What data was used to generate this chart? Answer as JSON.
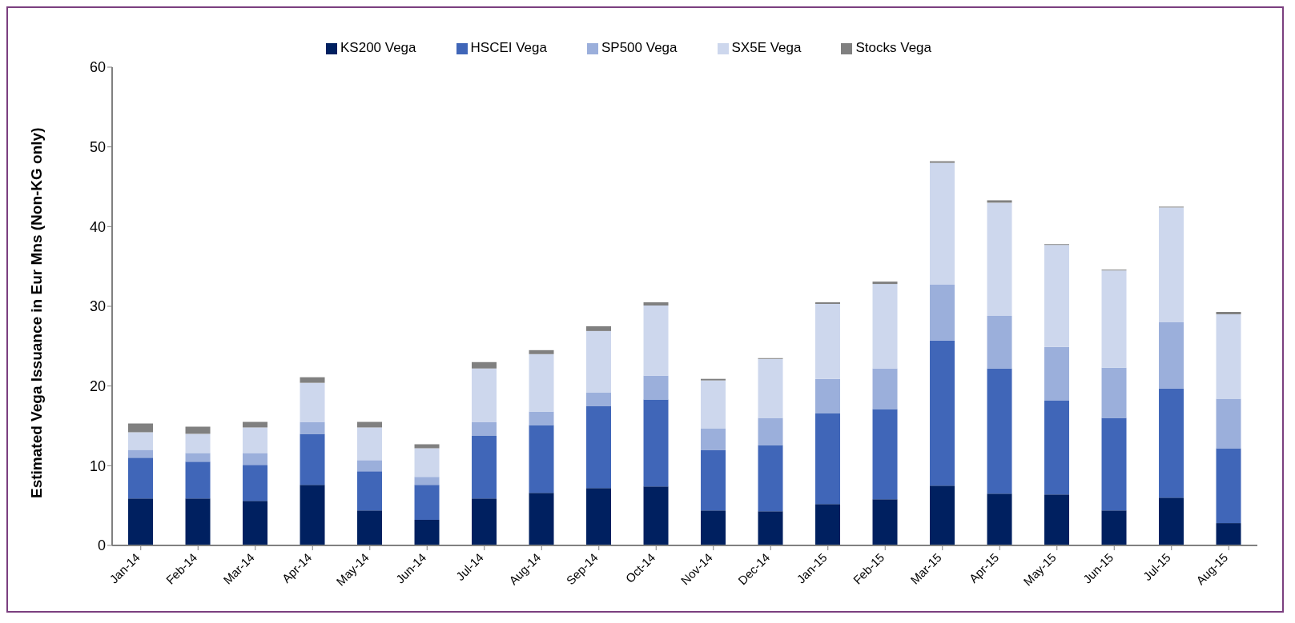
{
  "chart_data": {
    "type": "bar",
    "stacked": true,
    "ylabel": "Estimated Vega Issuance in Eur Mns (Non-KG only)",
    "categories": [
      "Jan-14",
      "Feb-14",
      "Mar-14",
      "Apr-14",
      "May-14",
      "Jun-14",
      "Jul-14",
      "Aug-14",
      "Sep-14",
      "Oct-14",
      "Nov-14",
      "Dec-14",
      "Jan-15",
      "Feb-15",
      "Mar-15",
      "Apr-15",
      "May-15",
      "Jun-15",
      "Jul-15",
      "Aug-15"
    ],
    "series": [
      {
        "name": "KS200 Vega",
        "color": "#002060",
        "values": [
          5.9,
          5.9,
          5.6,
          7.6,
          4.4,
          3.2,
          5.9,
          6.6,
          7.2,
          7.4,
          4.4,
          4.3,
          5.2,
          5.8,
          7.5,
          6.5,
          6.4,
          4.4,
          6.0,
          2.8
        ]
      },
      {
        "name": "HSCEI Vega",
        "color": "#4066b8",
        "values": [
          5.1,
          4.6,
          4.5,
          6.4,
          4.9,
          4.4,
          7.9,
          8.5,
          10.3,
          10.9,
          7.6,
          8.3,
          11.4,
          11.3,
          18.2,
          15.7,
          11.8,
          11.6,
          13.7,
          9.4
        ]
      },
      {
        "name": "SP500 Vega",
        "color": "#9bafdb",
        "values": [
          1.0,
          1.1,
          1.5,
          1.5,
          1.4,
          1.0,
          1.7,
          1.7,
          1.7,
          3.0,
          2.7,
          3.4,
          4.3,
          5.1,
          7.0,
          6.6,
          6.7,
          6.3,
          8.3,
          6.2
        ]
      },
      {
        "name": "SX5E Vega",
        "color": "#cdd7ed",
        "values": [
          2.2,
          2.4,
          3.2,
          4.9,
          4.1,
          3.6,
          6.7,
          7.2,
          7.7,
          8.8,
          6.0,
          7.4,
          9.4,
          10.6,
          15.3,
          14.2,
          12.8,
          12.2,
          14.4,
          10.6
        ]
      },
      {
        "name": "Stocks Vega",
        "color": "#808080",
        "values": [
          1.1,
          0.9,
          0.7,
          0.7,
          0.7,
          0.5,
          0.8,
          0.5,
          0.6,
          0.4,
          0.2,
          0.1,
          0.2,
          0.3,
          0.2,
          0.3,
          0.1,
          0.1,
          0.1,
          0.3
        ]
      }
    ],
    "ylim": [
      0,
      60
    ],
    "yticks": [
      0,
      10,
      20,
      30,
      40,
      50,
      60
    ],
    "grid": false,
    "legend": "top"
  }
}
